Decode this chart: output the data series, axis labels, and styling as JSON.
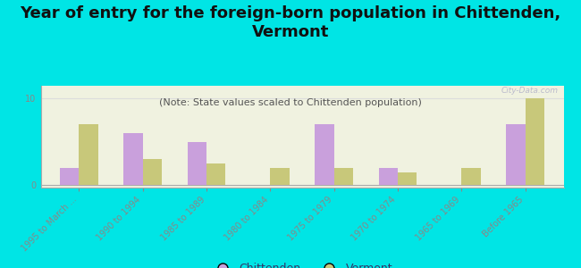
{
  "title": "Year of entry for the foreign-born population in Chittenden,\nVermont",
  "subtitle": "(Note: State values scaled to Chittenden population)",
  "categories": [
    "1995 to March ...",
    "1990 to 1994",
    "1985 to 1989",
    "1980 to 1984",
    "1975 to 1979",
    "1970 to 1974",
    "1965 to 1969",
    "Before 1965"
  ],
  "chittenden_values": [
    2,
    6,
    5,
    0,
    7,
    2,
    0,
    7
  ],
  "vermont_values": [
    7,
    3,
    2.5,
    2,
    2,
    1.5,
    2,
    10
  ],
  "chittenden_color": "#c9a0dc",
  "vermont_color": "#c8c87a",
  "background_color": "#00e5e5",
  "plot_bg_color": "#f0f2e0",
  "ylim": [
    -0.3,
    11.5
  ],
  "yticks": [
    0,
    10
  ],
  "watermark": "City-Data.com",
  "legend_chittenden": "Chittenden",
  "legend_vermont": "Vermont",
  "bar_width": 0.3,
  "title_fontsize": 13,
  "subtitle_fontsize": 8,
  "tick_fontsize": 7,
  "title_color": "#111111",
  "subtitle_color": "#555555",
  "tick_color": "#888888"
}
